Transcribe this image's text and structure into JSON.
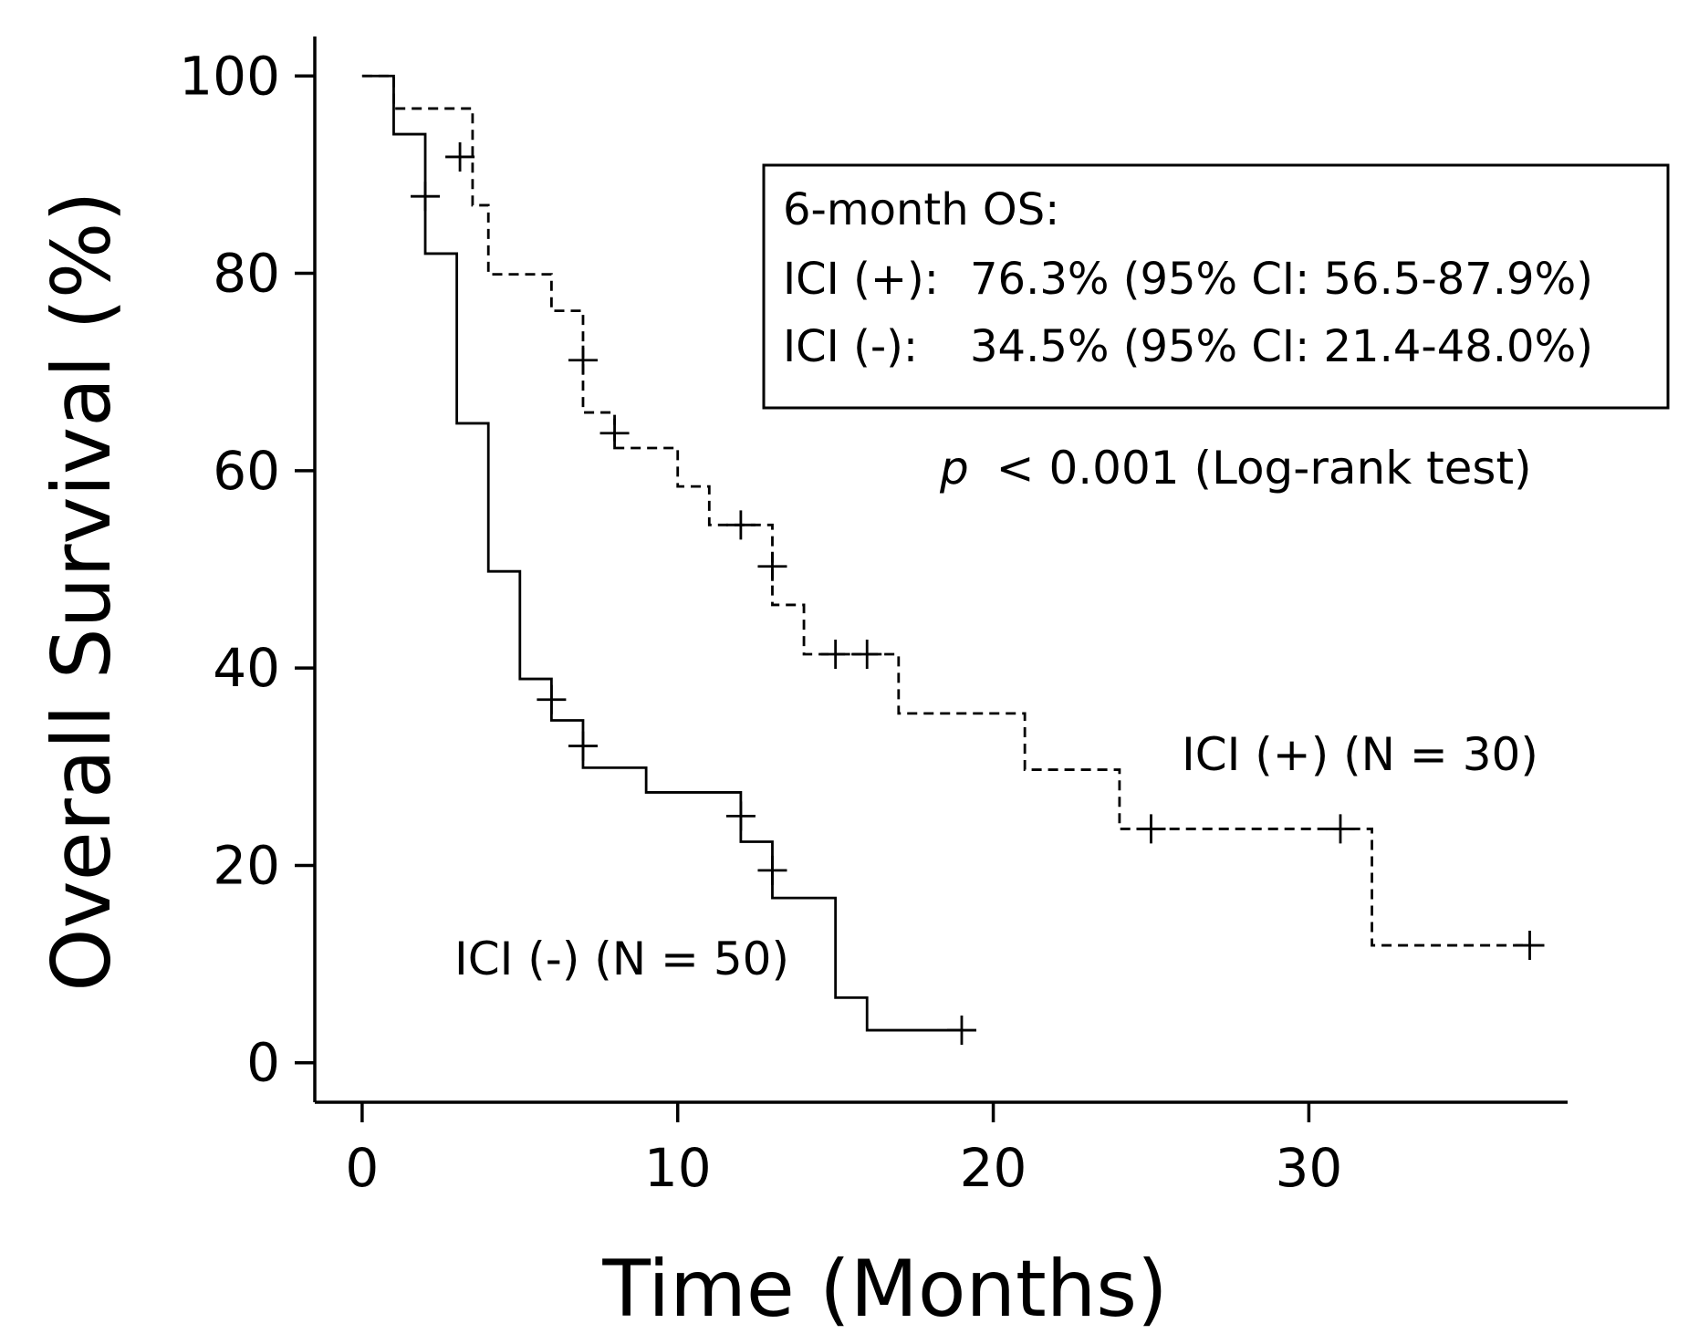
{
  "chart_data": {
    "type": "line",
    "subtype": "kaplan-meier",
    "title": "",
    "xlabel": "Time (Months)",
    "ylabel": "Overall Survival  (%)",
    "xlim": [
      -1.5,
      38.2
    ],
    "ylim": [
      -4,
      104
    ],
    "xticks": [
      0,
      10,
      20,
      30
    ],
    "yticks": [
      0,
      20,
      40,
      60,
      80,
      100
    ],
    "grid": false,
    "series": [
      {
        "name": "ICI (+) (N = 30)",
        "label": "ICI (+) (N = 30)",
        "line_style": "dashed",
        "color": "#000000",
        "steps": [
          [
            0,
            100
          ],
          [
            1,
            96.7
          ],
          [
            3.5,
            86.9
          ],
          [
            4,
            79.9
          ],
          [
            6,
            76.2
          ],
          [
            7,
            65.9
          ],
          [
            8,
            62.3
          ],
          [
            10,
            58.4
          ],
          [
            11,
            54.5
          ],
          [
            13,
            46.4
          ],
          [
            14,
            41.4
          ],
          [
            17,
            35.4
          ],
          [
            21,
            29.7
          ],
          [
            24,
            23.7
          ],
          [
            32,
            11.9
          ],
          [
            37,
            11.9
          ]
        ],
        "censored": [
          [
            3.1,
            91.8
          ],
          [
            7,
            71.2
          ],
          [
            8,
            63.8
          ],
          [
            12,
            54.5
          ],
          [
            13,
            50.3
          ],
          [
            15,
            41.4
          ],
          [
            16,
            41.4
          ],
          [
            25,
            23.7
          ],
          [
            31,
            23.7
          ],
          [
            37,
            11.9
          ]
        ]
      },
      {
        "name": "ICI (-) (N = 50)",
        "label": "ICI (-) (N = 50)",
        "line_style": "solid",
        "color": "#000000",
        "steps": [
          [
            0,
            100
          ],
          [
            1,
            94.1
          ],
          [
            2,
            82
          ],
          [
            3,
            64.8
          ],
          [
            4,
            49.8
          ],
          [
            5,
            38.9
          ],
          [
            6,
            34.7
          ],
          [
            7,
            29.9
          ],
          [
            9,
            27.4
          ],
          [
            12,
            22.4
          ],
          [
            13,
            16.7
          ],
          [
            15,
            6.6
          ],
          [
            16,
            3.3
          ],
          [
            19,
            3.3
          ]
        ],
        "censored": [
          [
            2,
            87.8
          ],
          [
            6,
            36.8
          ],
          [
            7,
            32.1
          ],
          [
            12,
            25
          ],
          [
            13,
            19.5
          ],
          [
            19,
            3.3
          ]
        ]
      }
    ],
    "legend_box": {
      "title": "6-month OS:",
      "entries": [
        {
          "group": "ICI (+):",
          "text": "76.3% (95% CI: 56.5-87.9%)"
        },
        {
          "group": "ICI (-):",
          "text": "34.5% (95% CI: 21.4-48.0%)"
        }
      ],
      "placement": "top-right"
    },
    "annotations": {
      "p_symbol": "p",
      "p_text": "< 0.001 (Log-rank test)"
    }
  }
}
